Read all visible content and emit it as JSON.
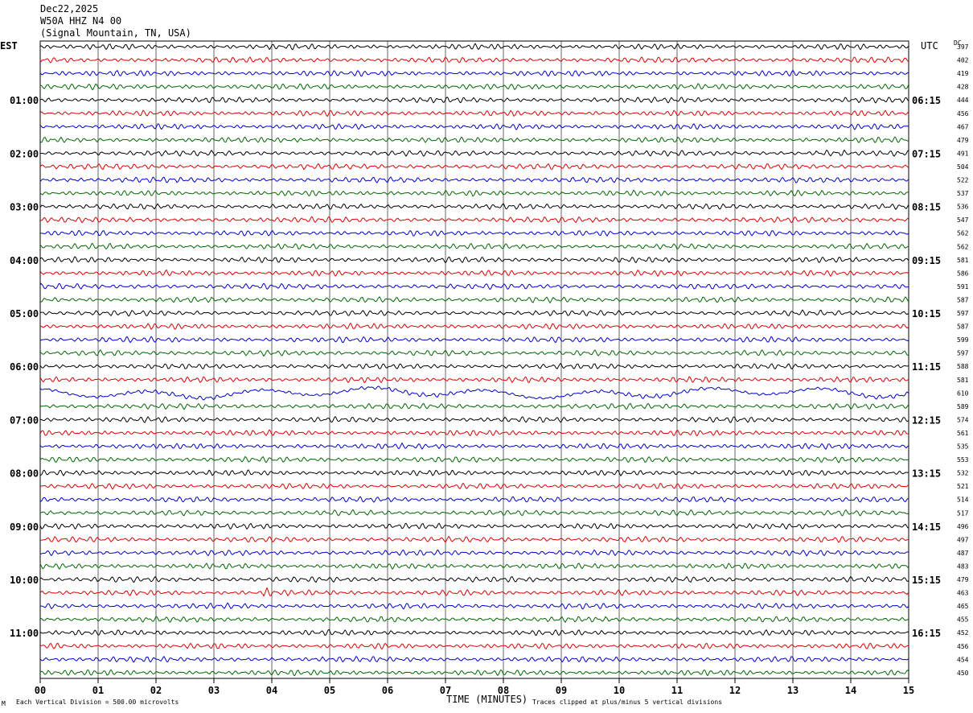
{
  "header": {
    "date": "Dec22,2025",
    "station": "W50A HHZ N4 00",
    "location": "(Signal Mountain, TN, USA)"
  },
  "labels": {
    "left_tz": "EST",
    "right_tz": "UTC",
    "dc": "DC",
    "xlabel": "TIME (MINUTES)",
    "scale_note": "Each Vertical Division =  500.00 microvolts",
    "clip_note": "Traces clipped at plus/minus 5 vertical divisions",
    "corner_mark": "M"
  },
  "colors": [
    "#000000",
    "#dd0000",
    "#0000cc",
    "#006600"
  ],
  "chart_data": {
    "type": "line",
    "title": "",
    "xlabel": "TIME (MINUTES)",
    "xlim": [
      0,
      15
    ],
    "x_ticks": [
      "00",
      "01",
      "02",
      "03",
      "04",
      "05",
      "06",
      "07",
      "08",
      "09",
      "10",
      "11",
      "12",
      "13",
      "14",
      "15"
    ],
    "left_hour_labels": [
      {
        "trace": 4,
        "label": "01:00"
      },
      {
        "trace": 8,
        "label": "02:00"
      },
      {
        "trace": 12,
        "label": "03:00"
      },
      {
        "trace": 16,
        "label": "04:00"
      },
      {
        "trace": 20,
        "label": "05:00"
      },
      {
        "trace": 24,
        "label": "06:00"
      },
      {
        "trace": 28,
        "label": "07:00"
      },
      {
        "trace": 32,
        "label": "08:00"
      },
      {
        "trace": 36,
        "label": "09:00"
      },
      {
        "trace": 40,
        "label": "10:00"
      },
      {
        "trace": 44,
        "label": "11:00"
      }
    ],
    "right_hour_labels": [
      {
        "trace": 4,
        "label": "06:15"
      },
      {
        "trace": 8,
        "label": "07:15"
      },
      {
        "trace": 12,
        "label": "08:15"
      },
      {
        "trace": 16,
        "label": "09:15"
      },
      {
        "trace": 20,
        "label": "10:15"
      },
      {
        "trace": 24,
        "label": "11:15"
      },
      {
        "trace": 28,
        "label": "12:15"
      },
      {
        "trace": 32,
        "label": "13:15"
      },
      {
        "trace": 36,
        "label": "14:15"
      },
      {
        "trace": 40,
        "label": "15:15"
      },
      {
        "trace": 44,
        "label": "16:15"
      }
    ],
    "dc_offsets": [
      397,
      402,
      419,
      428,
      444,
      456,
      467,
      479,
      491,
      504,
      522,
      537,
      536,
      547,
      562,
      562,
      581,
      586,
      591,
      587,
      597,
      587,
      599,
      597,
      588,
      581,
      610,
      589,
      574,
      561,
      535,
      553,
      532,
      521,
      514,
      517,
      496,
      497,
      487,
      483,
      479,
      463,
      465,
      455,
      452,
      456,
      454,
      450
    ],
    "events": [
      {
        "trace": 8,
        "x_min": 13.4,
        "x_max": 13.9
      },
      {
        "trace": 41,
        "x_min": 3.85,
        "x_max": 4.1
      },
      {
        "trace": 26,
        "x_min": 0.0,
        "x_max": 15.0,
        "note": "long-period"
      }
    ]
  }
}
